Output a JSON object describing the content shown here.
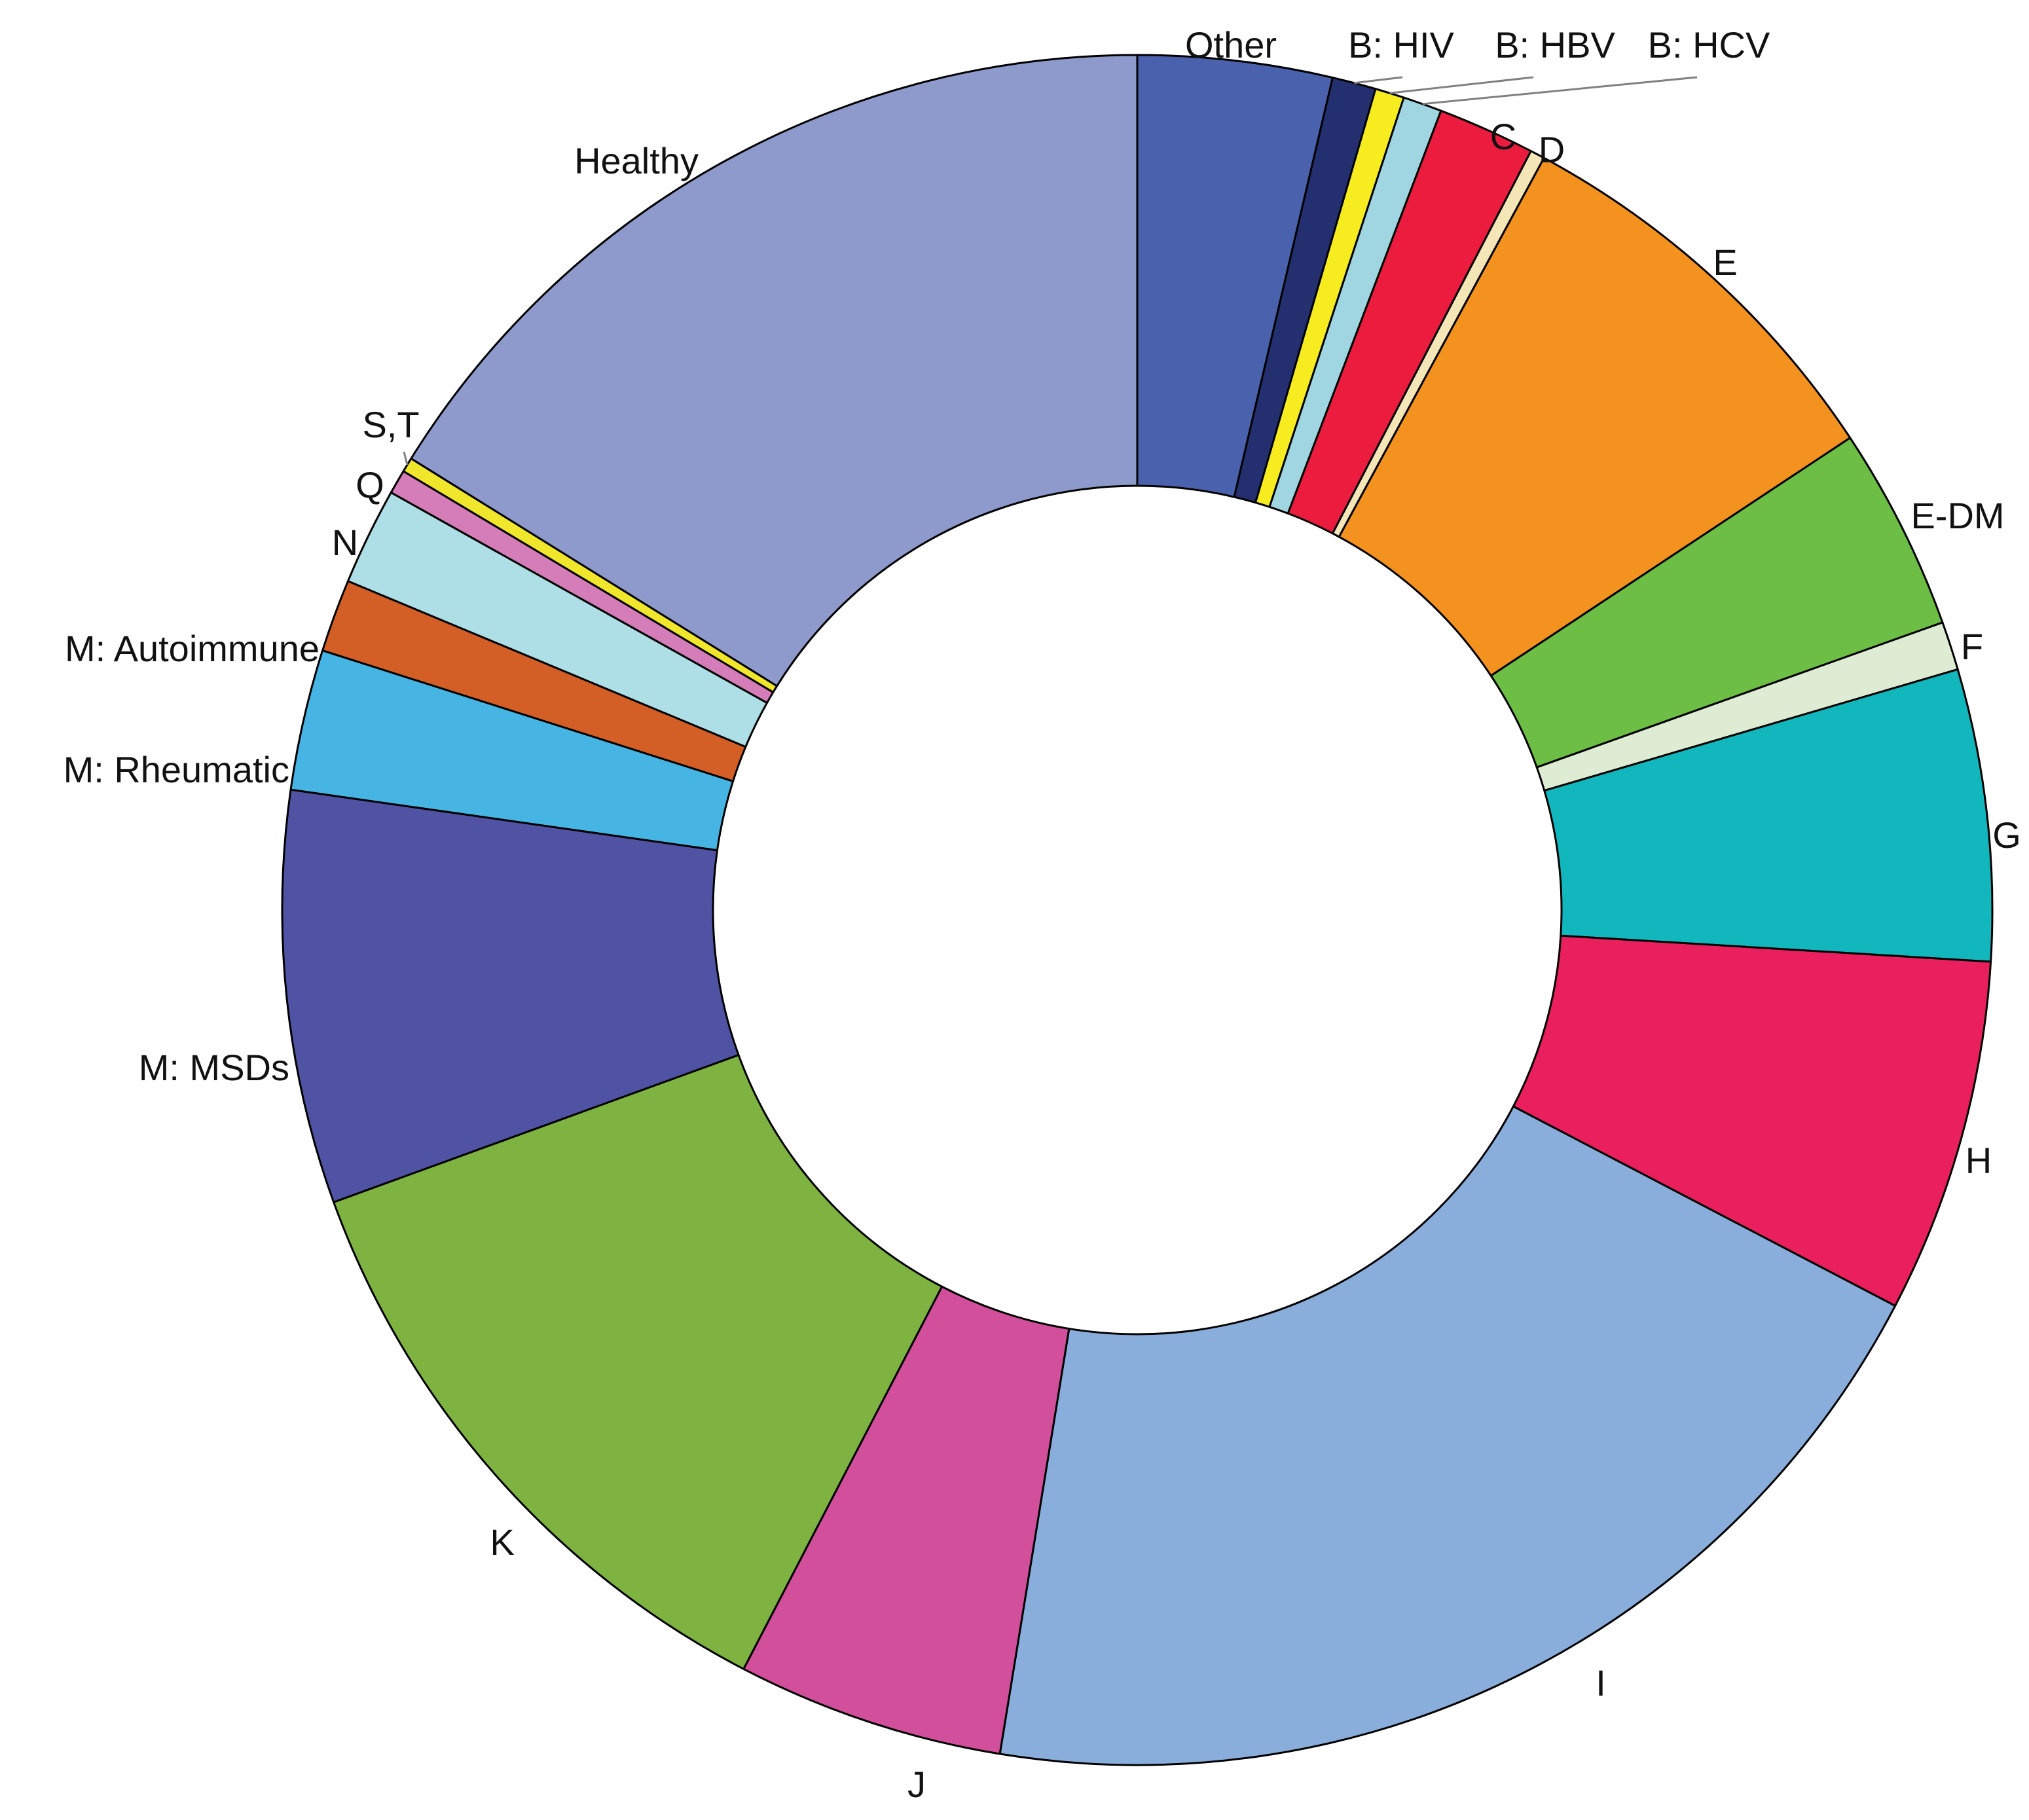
{
  "chart_data": {
    "type": "pie",
    "subtype": "donut",
    "start_angle": "12 o'clock",
    "direction": "clockwise",
    "unit": "%",
    "note_values": "approximate shares of 100% estimated from slice angles",
    "slices": [
      {
        "label": "Other",
        "value": 4.0,
        "color": "#4a62ad"
      },
      {
        "label": "B: HIV",
        "value": 0.9,
        "color": "#232f6e"
      },
      {
        "label": "B: HBV",
        "value": 0.6,
        "color": "#f7ec1f"
      },
      {
        "label": "B: HCV",
        "value": 0.8,
        "color": "#9fd6e1"
      },
      {
        "label": "C",
        "value": 2.0,
        "color": "#ec1c3f"
      },
      {
        "label": "D",
        "value": 0.3,
        "color": "#f5e6b8"
      },
      {
        "label": "E",
        "value": 8.5,
        "color": "#f49220"
      },
      {
        "label": "E-DM",
        "value": 4.2,
        "color": "#6dbe45"
      },
      {
        "label": "F",
        "value": 1.0,
        "color": "#ddecd2"
      },
      {
        "label": "G",
        "value": 6.0,
        "color": "#12b7bd"
      },
      {
        "label": "H",
        "value": 7.3,
        "color": "#ea1f5e"
      },
      {
        "label": "I",
        "value": 21.7,
        "color": "#8aaedc"
      },
      {
        "label": "J",
        "value": 5.5,
        "color": "#d24f9b"
      },
      {
        "label": "K",
        "value": 12.9,
        "color": "#7fb341"
      },
      {
        "label": "M: MSDs",
        "value": 8.5,
        "color": "#5053a3"
      },
      {
        "label": "M: Rheumatic",
        "value": 2.9,
        "color": "#46b5e3"
      },
      {
        "label": "M: Autoimmune",
        "value": 1.5,
        "color": "#d45f26"
      },
      {
        "label": "N",
        "value": 2.0,
        "color": "#aedfe6"
      },
      {
        "label": "Q",
        "value": 0.5,
        "color": "#d57db8"
      },
      {
        "label": "S,T",
        "value": 0.3,
        "color": "#f0e62c"
      },
      {
        "label": "Healthy",
        "value": 17.6,
        "color": "#8d9acb"
      }
    ]
  }
}
